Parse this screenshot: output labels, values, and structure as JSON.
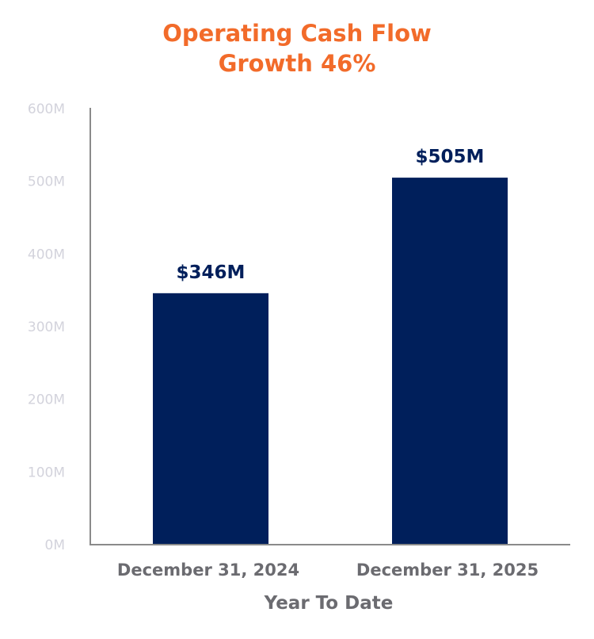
{
  "chart_data": {
    "type": "bar",
    "title": [
      "Operating Cash Flow",
      "Growth 46%"
    ],
    "categories": [
      "December 31, 2024",
      "December 31, 2025"
    ],
    "values": [
      346,
      505
    ],
    "data_labels": [
      "$346M",
      "$505M"
    ],
    "xlabel": "Year To Date",
    "ylabel": "",
    "ylim": [
      0,
      600
    ],
    "yticks": [
      "0M",
      "100M",
      "200M",
      "300M",
      "400M",
      "500M",
      "600M"
    ],
    "grid": false,
    "colors": {
      "bar": "#001f5b",
      "title": "#f26b2a",
      "axis": "#8a8a8a"
    }
  }
}
